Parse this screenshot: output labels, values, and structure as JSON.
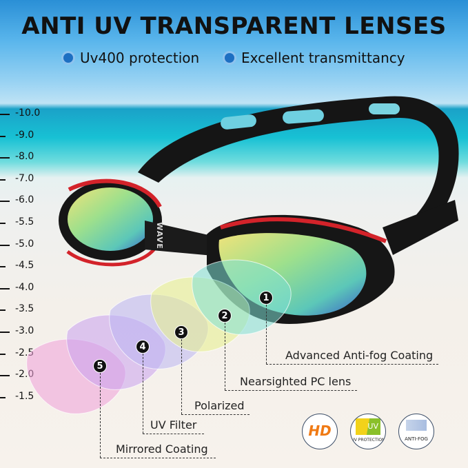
{
  "title": "ANTI UV TRANSPARENT LENSES",
  "features": [
    "Uv400 protection",
    "Excellent transmittancy"
  ],
  "scale": [
    "-10.0",
    "-9.0",
    "-8.0",
    "-7.0",
    "-6.0",
    "-5.5",
    "-5.0",
    "-4.5",
    "-4.0",
    "-3.5",
    "-3.0",
    "-2.5",
    "-2.0",
    "-1.5"
  ],
  "layers": [
    {
      "number": "1",
      "label": "Advanced Anti-fog Coating",
      "color": "#7fe0d6"
    },
    {
      "number": "2",
      "label": "Nearsighted PC lens",
      "color": "#e6f08a"
    },
    {
      "number": "3",
      "label": "Polarized",
      "color": "#b9b4f2"
    },
    {
      "number": "4",
      "label": "UV Filter",
      "color": "#c9a0ee"
    },
    {
      "number": "5",
      "label": "Mirrored Coating",
      "color": "#ee9fd8"
    }
  ],
  "badges": [
    {
      "icon": "hd-icon",
      "text": "HD"
    },
    {
      "icon": "uv-protection-icon",
      "text": "UV",
      "caption": "UV PROTECTION"
    },
    {
      "icon": "anti-fog-icon",
      "caption": "ANTI-FOG"
    }
  ],
  "brand_text": "WAVE"
}
